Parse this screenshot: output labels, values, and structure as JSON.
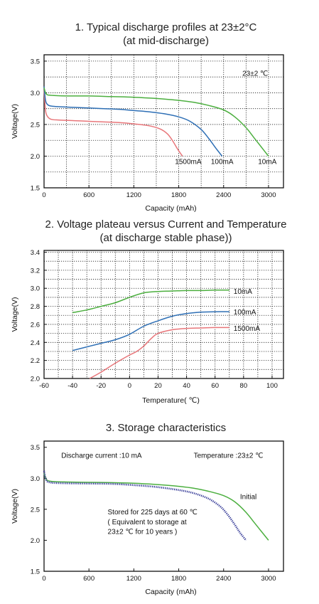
{
  "chart_data": [
    {
      "type": "line",
      "title": "1. Typical discharge profiles at 23±2°C",
      "subtitle": "(at mid-discharge)",
      "xlabel": "Capacity (mAh)",
      "ylabel": "Voltage(V)",
      "xlim": [
        0,
        3200
      ],
      "ylim": [
        1.5,
        3.6
      ],
      "xticks": [
        0,
        600,
        1200,
        1800,
        2400,
        3000
      ],
      "xtick_labels": [
        "0",
        "600",
        "1200",
        "1800",
        "2400",
        "3000"
      ],
      "yticks": [
        1.5,
        2.0,
        2.5,
        3.0,
        3.5
      ],
      "ytick_labels": [
        "1.5",
        "2.0",
        "2.5",
        "3.0",
        "3.5"
      ],
      "grid": true,
      "annotations": [
        {
          "text": "23±2 ℃",
          "x": 2650,
          "y": 3.27
        }
      ],
      "series": [
        {
          "name": "1500mA",
          "color": "#e8767a",
          "label_at": [
            1750,
            1.92
          ],
          "x": [
            0,
            20,
            50,
            100,
            200,
            400,
            600,
            800,
            1000,
            1200,
            1400,
            1550,
            1650,
            1720,
            1780,
            1850
          ],
          "y": [
            3.05,
            2.72,
            2.62,
            2.58,
            2.57,
            2.56,
            2.55,
            2.54,
            2.53,
            2.51,
            2.48,
            2.43,
            2.35,
            2.24,
            2.12,
            2.0
          ]
        },
        {
          "name": "100mA",
          "color": "#2e6fb5",
          "label_at": [
            2230,
            1.92
          ],
          "x": [
            0,
            20,
            50,
            100,
            200,
            400,
            600,
            800,
            1000,
            1200,
            1400,
            1600,
            1800,
            1950,
            2100,
            2200,
            2300,
            2380
          ],
          "y": [
            3.1,
            2.88,
            2.81,
            2.79,
            2.78,
            2.77,
            2.76,
            2.75,
            2.74,
            2.72,
            2.7,
            2.67,
            2.62,
            2.55,
            2.42,
            2.28,
            2.12,
            2.0
          ]
        },
        {
          "name": "10mA",
          "color": "#4caf3f",
          "label_at": [
            2860,
            1.92
          ],
          "x": [
            0,
            30,
            100,
            300,
            600,
            900,
            1200,
            1500,
            1800,
            2000,
            2200,
            2400,
            2550,
            2700,
            2800,
            2900,
            3000
          ],
          "y": [
            3.08,
            2.98,
            2.96,
            2.95,
            2.95,
            2.94,
            2.93,
            2.91,
            2.88,
            2.85,
            2.8,
            2.73,
            2.62,
            2.45,
            2.3,
            2.15,
            2.0
          ]
        }
      ]
    },
    {
      "type": "line",
      "title": "2. Voltage plateau versus Current and Temperature",
      "subtitle": "(at discharge stable phase))",
      "xlabel": "Temperature( ℃)",
      "ylabel": "Voltage(V)",
      "xlim": [
        -60,
        108
      ],
      "ylim": [
        2.0,
        3.42
      ],
      "xticks": [
        -60,
        -40,
        -20,
        0,
        20,
        40,
        60,
        80,
        100
      ],
      "xtick_labels": [
        "-60",
        "-40",
        "-20",
        "0",
        "20",
        "40",
        "60",
        "80",
        "100"
      ],
      "yticks": [
        2.0,
        2.2,
        2.4,
        2.6,
        2.8,
        3.0,
        3.2,
        3.4
      ],
      "ytick_labels": [
        "2.0",
        "2.2",
        "2.4",
        "2.6",
        "2.8",
        "3.0",
        "3.2",
        "3.4"
      ],
      "grid": true,
      "series": [
        {
          "name": "10mA",
          "color": "#4caf3f",
          "label_at": [
            73,
            2.97
          ],
          "x": [
            -40,
            -30,
            -20,
            -10,
            0,
            10,
            20,
            30,
            40,
            50,
            60,
            70
          ],
          "y": [
            2.73,
            2.76,
            2.8,
            2.84,
            2.9,
            2.95,
            2.965,
            2.97,
            2.975,
            2.975,
            2.98,
            2.98
          ]
        },
        {
          "name": "100mA",
          "color": "#2e6fb5",
          "label_at": [
            73,
            2.74
          ],
          "x": [
            -40,
            -30,
            -20,
            -10,
            0,
            10,
            20,
            30,
            40,
            50,
            60,
            70
          ],
          "y": [
            2.31,
            2.35,
            2.39,
            2.43,
            2.49,
            2.58,
            2.64,
            2.69,
            2.72,
            2.735,
            2.74,
            2.74
          ]
        },
        {
          "name": "1500mA",
          "color": "#e8767a",
          "label_at": [
            73,
            2.56
          ],
          "x": [
            -28,
            -20,
            -10,
            0,
            5,
            10,
            15,
            20,
            30,
            40,
            50,
            60,
            70
          ],
          "y": [
            2.0,
            2.07,
            2.17,
            2.26,
            2.3,
            2.36,
            2.44,
            2.5,
            2.54,
            2.555,
            2.56,
            2.565,
            2.565
          ]
        }
      ]
    },
    {
      "type": "line",
      "title": "3. Storage characteristics",
      "xlabel": "Capacity (mAh)",
      "ylabel": "Voltage(V)",
      "xlim": [
        0,
        3200
      ],
      "ylim": [
        1.5,
        3.6
      ],
      "xticks": [
        0,
        600,
        1200,
        1800,
        2400,
        3000
      ],
      "xtick_labels": [
        "0",
        "600",
        "1200",
        "1800",
        "2400",
        "3000"
      ],
      "yticks": [
        1.5,
        2.0,
        2.5,
        3.0,
        3.5
      ],
      "ytick_labels": [
        "1.5",
        "2.0",
        "2.5",
        "3.0",
        "3.5"
      ],
      "grid": false,
      "annotations": [
        {
          "text": "Discharge current :10 mA",
          "x": 230,
          "y": 3.33
        },
        {
          "text": "Temperature :23±2 ℃",
          "x": 2000,
          "y": 3.33
        },
        {
          "text": "Stored for 225 days at 60  ℃",
          "x": 850,
          "y": 2.42
        },
        {
          "text": "( Equivalent to storage at",
          "x": 850,
          "y": 2.26
        },
        {
          "text": "23±2 ℃ for 10 years  )",
          "x": 850,
          "y": 2.1
        }
      ],
      "series": [
        {
          "name": "Initial",
          "color": "#4caf3f",
          "style": "solid",
          "label_at": [
            2620,
            2.71
          ],
          "x": [
            0,
            30,
            100,
            300,
            600,
            900,
            1200,
            1500,
            1800,
            2000,
            2200,
            2400,
            2550,
            2700,
            2800,
            2900,
            3000
          ],
          "y": [
            3.08,
            2.98,
            2.95,
            2.94,
            2.935,
            2.93,
            2.92,
            2.9,
            2.87,
            2.84,
            2.79,
            2.72,
            2.62,
            2.45,
            2.3,
            2.15,
            2.0
          ]
        },
        {
          "name": "Stored for 225 days at 60  ℃",
          "color": "#3a3f9a",
          "style": "dotted",
          "x": [
            0,
            30,
            100,
            300,
            600,
            900,
            1200,
            1500,
            1800,
            2000,
            2200,
            2350,
            2450,
            2550,
            2620,
            2700
          ],
          "y": [
            3.12,
            2.97,
            2.93,
            2.92,
            2.915,
            2.91,
            2.89,
            2.86,
            2.81,
            2.76,
            2.67,
            2.55,
            2.42,
            2.25,
            2.12,
            2.0
          ]
        }
      ]
    }
  ]
}
